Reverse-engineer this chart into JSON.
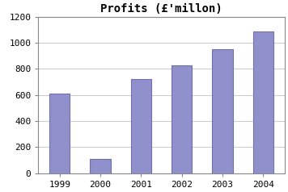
{
  "categories": [
    "1999",
    "2000",
    "2001",
    "2002",
    "2003",
    "2004"
  ],
  "values": [
    610,
    110,
    720,
    830,
    950,
    1090
  ],
  "bar_color": "#9090cc",
  "bar_edgecolor": "#7070aa",
  "title": "Profits (£'millon)",
  "ylim": [
    0,
    1200
  ],
  "yticks": [
    0,
    200,
    400,
    600,
    800,
    1000,
    1200
  ],
  "background_color": "#ffffff",
  "plot_bg_color": "#ffffff",
  "grid_color": "#cccccc",
  "title_fontsize": 10,
  "tick_fontsize": 8,
  "title_fontweight": "bold",
  "bar_width": 0.5,
  "figsize": [
    3.56,
    2.38
  ],
  "dpi": 100
}
